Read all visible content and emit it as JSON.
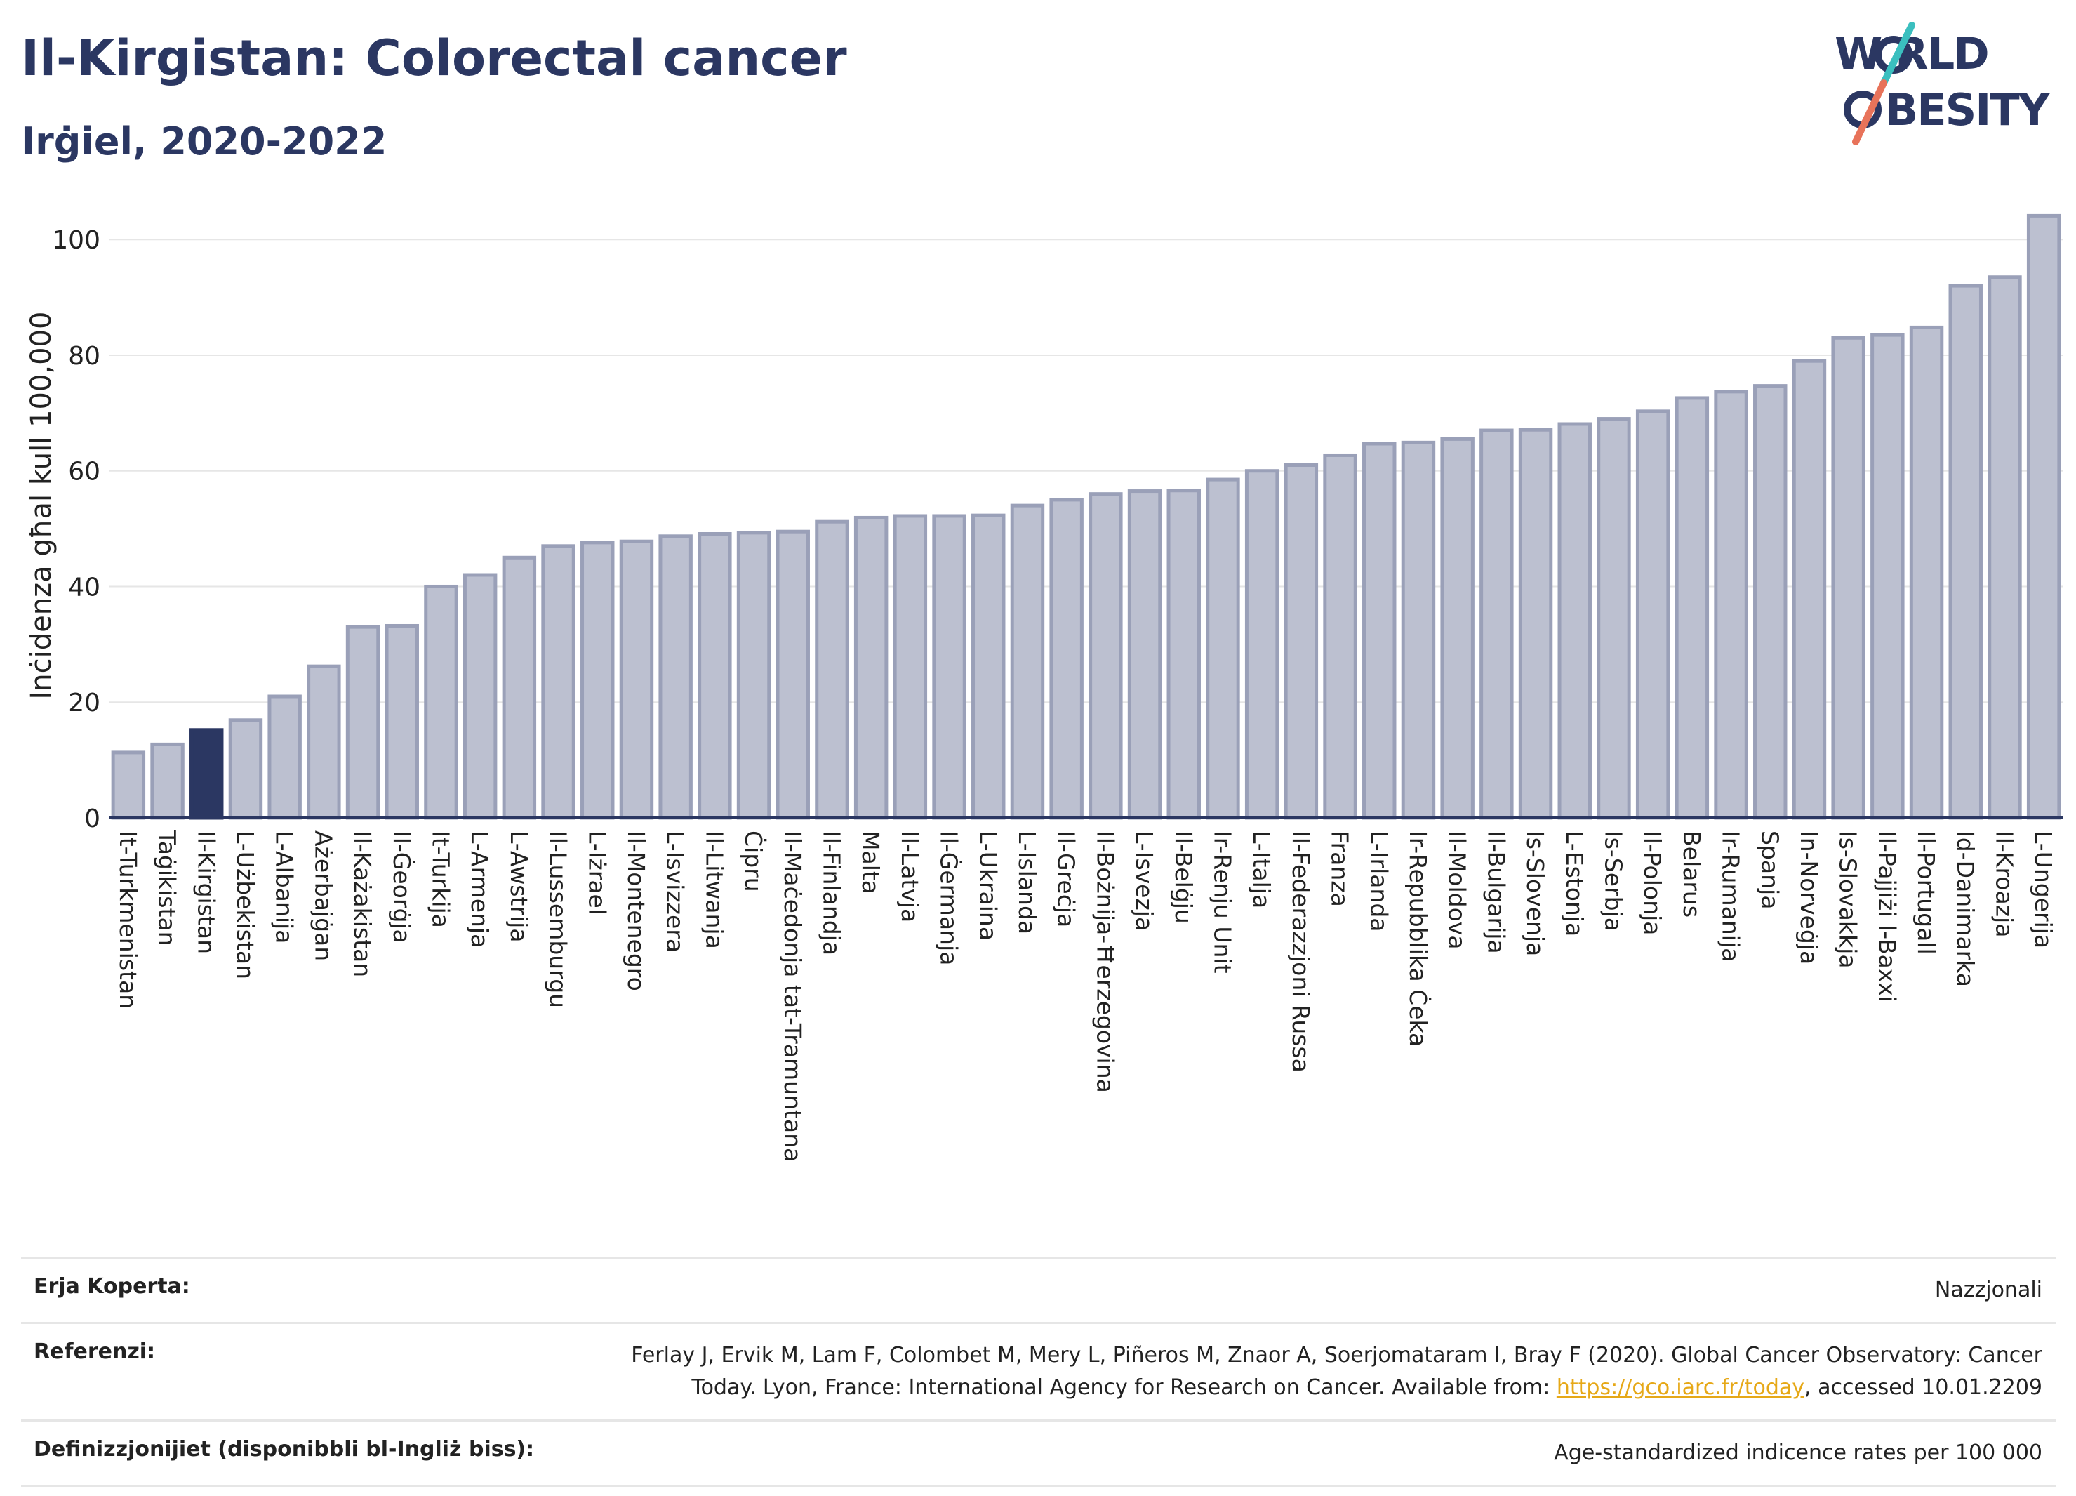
{
  "header": {
    "title": "Il-Kirgistan: Colorectal cancer",
    "subtitle": "Irġiel, 2020-2022"
  },
  "logo": {
    "line1": "W RLD",
    "line2": "BESITY",
    "colors": {
      "navy": "#2b3762",
      "teal": "#3bbfbf",
      "coral": "#e8735a"
    }
  },
  "chart_data": {
    "type": "bar",
    "ylabel": "Inċidenza għal kull 100,000",
    "xlabel": "",
    "ylim": [
      0,
      105
    ],
    "yticks": [
      0,
      20,
      40,
      60,
      80,
      100
    ],
    "grid": true,
    "highlight_category": "Il-Kirgistan",
    "colors": {
      "bar": "#bcc0d0",
      "bar_stroke": "#9aa0b8",
      "highlight": "#2b3762",
      "grid": "#e6e6e6",
      "axis": "#2b3762"
    },
    "categories": [
      "It-Turkmenistan",
      "Taġikistan",
      "Il-Kirgistan",
      "L-Użbekistan",
      "L-Albanija",
      "Ażerbajġan",
      "Il-Każakistan",
      "Il-Ġeorġja",
      "It-Turkija",
      "L-Armenja",
      "L-Awstrija",
      "Il-Lussemburgu",
      "L-Iżrael",
      "Il-Montenegro",
      "L-Isvizzera",
      "Il-Litwanja",
      "Ċipru",
      "Il-Maċedonja tat-Tramuntana",
      "Il-Finlandja",
      "Malta",
      "Il-Latvja",
      "Il-Ġermanja",
      "L-Ukraina",
      "L-Islanda",
      "Il-Greċja",
      "Il-Bożnija-Ħerzegovina",
      "L-Isvezja",
      "Il-Belġju",
      "Ir-Renju Unit",
      "L-Italja",
      "Il-Federazzjoni Russa",
      "Franza",
      "L-Irlanda",
      "Ir-Repubblika Ċeka",
      "Il-Moldova",
      "Il-Bulgarija",
      "Is-Slovenja",
      "L-Estonja",
      "Is-Serbja",
      "Il-Polonja",
      "Belarus",
      "Ir-Rumanija",
      "Spanja",
      "In-Norveġja",
      "Is-Slovakkja",
      "Il-Pajjiżi l-Baxxi",
      "Il-Portugall",
      "Id-Danimarka",
      "Il-Kroazja",
      "L-Ungerija"
    ],
    "values": [
      11.3,
      12.7,
      15.2,
      16.9,
      21.0,
      26.2,
      33.0,
      33.2,
      40.0,
      42.0,
      45.0,
      47.0,
      47.6,
      47.8,
      48.7,
      49.1,
      49.3,
      49.5,
      51.2,
      51.9,
      52.2,
      52.2,
      52.3,
      54.0,
      55.0,
      56.0,
      56.5,
      56.6,
      58.5,
      60.0,
      61.0,
      62.7,
      64.7,
      64.9,
      65.5,
      67.0,
      67.1,
      68.1,
      69.0,
      70.3,
      72.6,
      73.7,
      74.7,
      79.0,
      83.0,
      83.5,
      84.8,
      92.0,
      93.5,
      104.1
    ]
  },
  "info": {
    "coverage_label": "Erja Koperta:",
    "coverage_value": "Nazzjonali",
    "references_label": "Referenzi:",
    "references_text_1": "Ferlay J, Ervik M, Lam F, Colombet M, Mery L, Piñeros M, Znaor A, Soerjomataram I, Bray F (2020). Global Cancer Observatory: Cancer",
    "references_text_2": "Today. Lyon, France: International Agency for Research on Cancer. Available from: ",
    "references_link": "https://gco.iarc.fr/today",
    "references_text_3": ", accessed 10.01.2209",
    "definitions_label": "Definizzjonijiet (disponibbli bl-Ingliż biss):",
    "definitions_value": "Age-standardized indicence rates per 100 000"
  }
}
